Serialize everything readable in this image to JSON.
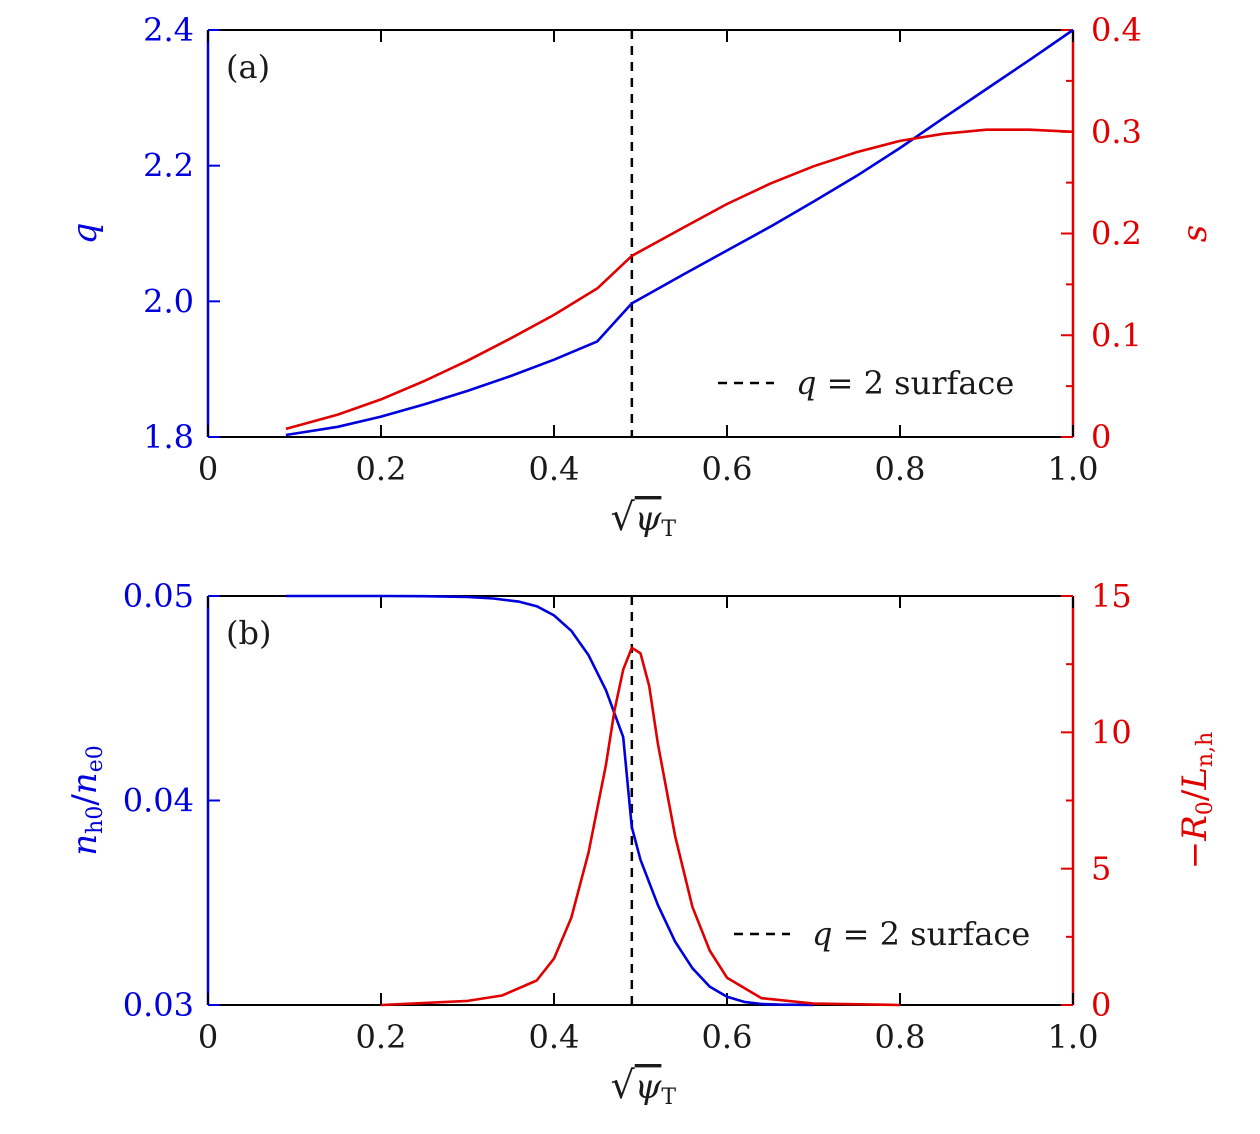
{
  "colors": {
    "left_axis": "#0000dd",
    "right_axis": "#e00000",
    "frame": "#000000",
    "marker": "#000000"
  },
  "chart_data": [
    {
      "type": "line",
      "panel_label": "(a)",
      "xlabel": "√ψT",
      "xlabel_parts": {
        "radical": "√",
        "base": "ψ",
        "sub": "T"
      },
      "xlim": [
        0,
        1.0
      ],
      "x_ticks": [
        "0",
        "0.2",
        "0.4",
        "0.6",
        "0.8",
        "1.0"
      ],
      "y_left": {
        "label": "q",
        "lim": [
          1.8,
          2.4
        ],
        "ticks": [
          "1.8",
          "2.0",
          "2.2",
          "2.4"
        ],
        "color": "#0000dd"
      },
      "y_right": {
        "label": "s",
        "lim": [
          0,
          0.4
        ],
        "ticks": [
          "0",
          "0.1",
          "0.2",
          "0.3",
          "0.4"
        ],
        "color": "#e00000"
      },
      "vline": {
        "x": 0.49,
        "style": "dashed"
      },
      "legend": {
        "text": "q = 2 surface",
        "italic_part": "q",
        "rest": " = 2 surface",
        "placement": "lower-right"
      },
      "series": [
        {
          "axis": "left",
          "color": "#0000dd",
          "x": [
            0.09,
            0.15,
            0.2,
            0.25,
            0.3,
            0.35,
            0.4,
            0.45,
            0.49,
            0.55,
            0.6,
            0.65,
            0.7,
            0.75,
            0.8,
            0.85,
            0.9,
            0.95,
            1.0
          ],
          "y": [
            1.803,
            1.815,
            1.83,
            1.848,
            1.868,
            1.89,
            1.914,
            1.941,
            1.997,
            2.04,
            2.075,
            2.11,
            2.147,
            2.185,
            2.226,
            2.27,
            2.313,
            2.356,
            2.4
          ]
        },
        {
          "axis": "right",
          "color": "#e00000",
          "x": [
            0.09,
            0.15,
            0.2,
            0.25,
            0.3,
            0.35,
            0.4,
            0.45,
            0.49,
            0.55,
            0.6,
            0.65,
            0.7,
            0.75,
            0.8,
            0.85,
            0.9,
            0.95,
            1.0
          ],
          "y": [
            0.008,
            0.022,
            0.037,
            0.055,
            0.075,
            0.097,
            0.12,
            0.146,
            0.178,
            0.206,
            0.229,
            0.249,
            0.266,
            0.28,
            0.291,
            0.298,
            0.302,
            0.302,
            0.3
          ]
        }
      ]
    },
    {
      "type": "line",
      "panel_label": "(b)",
      "xlabel": "√ψT",
      "xlabel_parts": {
        "radical": "√",
        "base": "ψ",
        "sub": "T"
      },
      "xlim": [
        0,
        1.0
      ],
      "x_ticks": [
        "0",
        "0.2",
        "0.4",
        "0.6",
        "0.8",
        "1.0"
      ],
      "y_left": {
        "label": "nh0/ne0",
        "label_parts": {
          "a": "n",
          "a_sub": "h0",
          "slash": "/",
          "b": "n",
          "b_sub": "e0"
        },
        "lim": [
          0.03,
          0.05
        ],
        "ticks": [
          "0.03",
          "0.04",
          "0.05"
        ],
        "color": "#0000dd"
      },
      "y_right": {
        "label": "−R0/Ln,h",
        "label_parts": {
          "minus": "−",
          "a": "R",
          "a_sub": "0",
          "slash": "/",
          "b": "L",
          "b_sub": "n,h"
        },
        "lim": [
          0,
          15
        ],
        "ticks": [
          "0",
          "5",
          "10",
          "15"
        ],
        "color": "#e00000"
      },
      "vline": {
        "x": 0.49,
        "style": "dashed"
      },
      "legend": {
        "text": "q = 2 surface",
        "italic_part": "q",
        "rest": " = 2 surface",
        "placement": "lower-right"
      },
      "series": [
        {
          "axis": "left",
          "color": "#0000dd",
          "x": [
            0.09,
            0.2,
            0.25,
            0.3,
            0.33,
            0.36,
            0.38,
            0.4,
            0.42,
            0.44,
            0.46,
            0.48,
            0.49,
            0.5,
            0.52,
            0.54,
            0.56,
            0.58,
            0.6,
            0.62,
            0.64,
            0.66,
            0.7
          ],
          "y": [
            0.05,
            0.05,
            0.04999,
            0.04995,
            0.04988,
            0.04972,
            0.0495,
            0.04905,
            0.0483,
            0.0471,
            0.0454,
            0.0431,
            0.0387,
            0.0371,
            0.0349,
            0.0331,
            0.0318,
            0.0309,
            0.0304,
            0.03015,
            0.03005,
            0.03002,
            0.03
          ]
        },
        {
          "axis": "right",
          "color": "#e00000",
          "x": [
            0.2,
            0.3,
            0.34,
            0.38,
            0.4,
            0.42,
            0.44,
            0.46,
            0.47,
            0.48,
            0.49,
            0.5,
            0.51,
            0.52,
            0.54,
            0.56,
            0.58,
            0.6,
            0.64,
            0.7,
            0.8
          ],
          "y": [
            0.0,
            0.15,
            0.35,
            0.9,
            1.7,
            3.2,
            5.6,
            8.8,
            10.8,
            12.3,
            13.1,
            12.9,
            11.7,
            9.6,
            6.2,
            3.6,
            2.0,
            1.0,
            0.25,
            0.05,
            0.0
          ]
        }
      ]
    }
  ]
}
